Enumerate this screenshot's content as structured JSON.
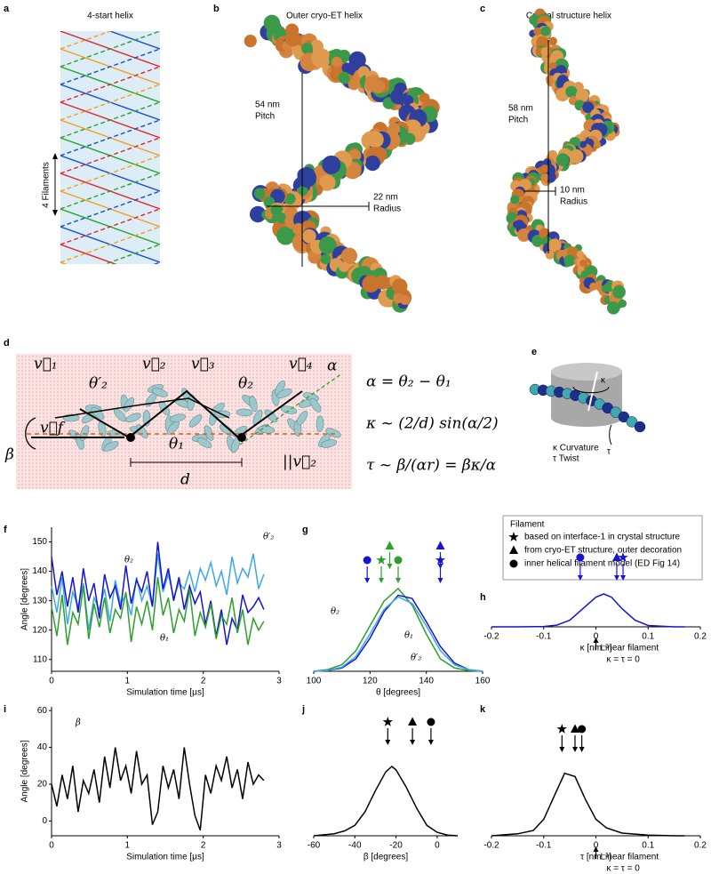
{
  "panels": {
    "a": {
      "letter": "a",
      "title": "4-start helix",
      "label": "4 Filaments"
    },
    "b": {
      "letter": "b",
      "title": "Outer cryo-ET helix",
      "pitch": "54 nm",
      "pitch_label": "Pitch",
      "radius": "22 nm",
      "radius_label": "Radius"
    },
    "c": {
      "letter": "c",
      "title": "Crystal structure helix",
      "pitch": "58 nm",
      "pitch_label": "Pitch",
      "radius": "10 nm",
      "radius_label": "Radius"
    },
    "d": {
      "letter": "d",
      "equations": [
        "α = θ₂ − θ₁",
        "κ ~ (2/d) sin(α/2)",
        "τ ~ β/(αr) = βκ/α"
      ],
      "labels": [
        "v⃗₁",
        "θ′₂",
        "v⃗₂",
        "v⃗₃",
        "θ₂",
        "v⃗₄",
        "α",
        "β",
        "v⃗f",
        "θ₁",
        "||v⃗₂",
        "d"
      ]
    },
    "e": {
      "letter": "e",
      "kappa": "κ",
      "tau": "τ",
      "curvature": "κ Curvature",
      "twist": "τ Twist"
    }
  },
  "legend": {
    "title": "Filament",
    "items": [
      {
        "shape": "star",
        "label": "based on interface-1 in crystal structure"
      },
      {
        "shape": "triangle",
        "label": "from cryo-ET structure, outer decoration"
      },
      {
        "shape": "circle",
        "label": "inner helical filament model (ED Fig 14)"
      }
    ]
  },
  "chart_data": [
    {
      "letter": "f",
      "type": "line",
      "x_label": "Simulation time [μs]",
      "y_label": "Angle [degrees]",
      "xlim": [
        0,
        3
      ],
      "xticks": [
        0,
        1,
        2,
        3
      ],
      "ylim": [
        106,
        155
      ],
      "yticks": [
        110,
        120,
        130,
        140,
        150
      ],
      "x": [
        0,
        0.07,
        0.14,
        0.21,
        0.28,
        0.35,
        0.42,
        0.49,
        0.56,
        0.63,
        0.7,
        0.77,
        0.84,
        0.91,
        0.98,
        1.05,
        1.12,
        1.19,
        1.26,
        1.33,
        1.4,
        1.47,
        1.54,
        1.61,
        1.68,
        1.75,
        1.82,
        1.89,
        1.96,
        2.03,
        2.1,
        2.17,
        2.24,
        2.31,
        2.38,
        2.45,
        2.52,
        2.59,
        2.66,
        2.73,
        2.8
      ],
      "series": [
        {
          "name": "θ′₂",
          "color": "#3aa8e8",
          "values": [
            135,
            126,
            138,
            122,
            133,
            128,
            136,
            120,
            131,
            127,
            134,
            123,
            137,
            129,
            132,
            125,
            138,
            130,
            135,
            128,
            146,
            133,
            139,
            131,
            136,
            134,
            140,
            133,
            141,
            137,
            143,
            135,
            140,
            132,
            145,
            136,
            141,
            138,
            146,
            134,
            139
          ]
        },
        {
          "name": "θ₂",
          "color": "#1414d2",
          "values": [
            145,
            132,
            140,
            128,
            138,
            126,
            141,
            130,
            136,
            124,
            139,
            131,
            135,
            127,
            142,
            129,
            137,
            133,
            140,
            128,
            150,
            134,
            141,
            130,
            138,
            127,
            135,
            129,
            133,
            122,
            130,
            118,
            127,
            115,
            124,
            120,
            132,
            126,
            128,
            131,
            127
          ]
        },
        {
          "name": "θ₁",
          "color": "#2ca02c",
          "values": [
            128,
            118,
            132,
            115,
            126,
            122,
            135,
            117,
            129,
            121,
            131,
            119,
            127,
            124,
            133,
            116,
            128,
            122,
            130,
            120,
            138,
            125,
            131,
            119,
            127,
            123,
            134,
            118,
            126,
            121,
            129,
            117,
            125,
            122,
            131,
            119,
            127,
            115,
            124,
            120,
            123
          ]
        }
      ]
    },
    {
      "letter": "g",
      "type": "line",
      "x_label": "θ [degrees]",
      "xlim": [
        100,
        160
      ],
      "xticks": [
        100,
        120,
        140,
        160
      ],
      "ylim": [
        0,
        1
      ],
      "x": [
        100,
        105,
        110,
        115,
        120,
        125,
        130,
        135,
        140,
        145,
        150,
        155,
        160
      ],
      "series": [
        {
          "name": "θ₁",
          "color": "#2ca02c",
          "values": [
            0,
            0.02,
            0.08,
            0.25,
            0.55,
            0.85,
            1.0,
            0.8,
            0.45,
            0.15,
            0.04,
            0.01,
            0
          ]
        },
        {
          "name": "θ₂",
          "color": "#1414d2",
          "values": [
            0,
            0.01,
            0.04,
            0.15,
            0.4,
            0.72,
            0.92,
            0.88,
            0.6,
            0.3,
            0.1,
            0.02,
            0
          ]
        },
        {
          "name": "θ′₂",
          "color": "#3aa8e8",
          "values": [
            0,
            0.01,
            0.05,
            0.18,
            0.45,
            0.75,
            0.9,
            0.82,
            0.55,
            0.25,
            0.08,
            0.02,
            0
          ]
        }
      ],
      "markers": [
        {
          "shape": "circle",
          "x": 119,
          "color": "#1414d2"
        },
        {
          "shape": "star",
          "x": 124,
          "color": "#2ca02c"
        },
        {
          "shape": "triangle",
          "x": 127,
          "color": "#2ca02c"
        },
        {
          "shape": "circle",
          "x": 130,
          "color": "#2ca02c"
        },
        {
          "shape": "triangle",
          "x": 145,
          "color": "#1414d2"
        },
        {
          "shape": "star",
          "x": 145,
          "color": "#1414d2"
        }
      ]
    },
    {
      "letter": "h",
      "type": "line",
      "x_label": "κ  [nm⁻¹]",
      "xlim": [
        -0.2,
        0.2
      ],
      "xticks": [
        -0.2,
        -0.1,
        0,
        0.1,
        0.2
      ],
      "ylim": [
        0,
        1
      ],
      "x": [
        -0.2,
        -0.15,
        -0.1,
        -0.075,
        -0.05,
        -0.025,
        0,
        0.015,
        0.03,
        0.05,
        0.075,
        0.1,
        0.15,
        0.17
      ],
      "series": [
        {
          "name": "κ",
          "color": "#1414d2",
          "values": [
            0,
            0,
            0.01,
            0.05,
            0.2,
            0.55,
            0.9,
            1.0,
            0.9,
            0.55,
            0.2,
            0.04,
            0,
            0
          ]
        }
      ],
      "markers": [
        {
          "shape": "circle",
          "x": -0.03,
          "color": "#1414d2"
        },
        {
          "shape": "triangle",
          "x": 0.04,
          "color": "#1414d2"
        },
        {
          "shape": "star",
          "x": 0.052,
          "color": "#1414d2"
        }
      ],
      "linear": {
        "x": 0,
        "label": "Linear filament",
        "note": "κ = τ = 0"
      }
    },
    {
      "letter": "i",
      "type": "line",
      "x_label": "Simulation time [μs]",
      "y_label": "Angle [degrees]",
      "xlim": [
        0,
        3
      ],
      "xticks": [
        0,
        1,
        2,
        3
      ],
      "ylim": [
        -8,
        62
      ],
      "yticks": [
        0,
        20,
        40,
        60
      ],
      "x": [
        0,
        0.07,
        0.14,
        0.21,
        0.28,
        0.35,
        0.42,
        0.49,
        0.56,
        0.63,
        0.7,
        0.77,
        0.84,
        0.91,
        0.98,
        1.05,
        1.12,
        1.19,
        1.26,
        1.33,
        1.4,
        1.47,
        1.54,
        1.61,
        1.68,
        1.75,
        1.82,
        1.89,
        1.96,
        2.03,
        2.1,
        2.17,
        2.24,
        2.31,
        2.38,
        2.45,
        2.52,
        2.59,
        2.66,
        2.73,
        2.8
      ],
      "series": [
        {
          "name": "β",
          "color": "#000000",
          "values": [
            20,
            8,
            25,
            12,
            30,
            5,
            22,
            15,
            28,
            10,
            35,
            18,
            40,
            22,
            30,
            15,
            38,
            20,
            25,
            -2,
            5,
            30,
            18,
            28,
            12,
            40,
            20,
            3,
            -5,
            25,
            15,
            30,
            22,
            35,
            18,
            28,
            12,
            32,
            20,
            25,
            22
          ]
        }
      ]
    },
    {
      "letter": "j",
      "type": "line",
      "x_label": "β [degrees]",
      "xlim": [
        -60,
        10
      ],
      "xticks": [
        -60,
        -40,
        -20,
        0
      ],
      "ylim": [
        0,
        1
      ],
      "x": [
        -60,
        -50,
        -45,
        -40,
        -35,
        -30,
        -25,
        -22,
        -20,
        -15,
        -10,
        -5,
        0,
        5,
        10
      ],
      "series": [
        {
          "name": "β",
          "color": "#000000",
          "values": [
            0,
            0.03,
            0.07,
            0.15,
            0.35,
            0.65,
            0.92,
            1.0,
            0.95,
            0.7,
            0.4,
            0.15,
            0.05,
            0.01,
            0
          ]
        }
      ],
      "markers": [
        {
          "shape": "star",
          "x": -24,
          "color": "#000000"
        },
        {
          "shape": "triangle",
          "x": -12,
          "color": "#000000"
        },
        {
          "shape": "circle",
          "x": -3,
          "color": "#000000"
        }
      ]
    },
    {
      "letter": "k",
      "type": "line",
      "x_label": "τ  [nm⁻¹]",
      "xlim": [
        -0.2,
        0.2
      ],
      "xticks": [
        -0.2,
        -0.1,
        0,
        0.1,
        0.2
      ],
      "ylim": [
        0,
        1
      ],
      "x": [
        -0.2,
        -0.15,
        -0.12,
        -0.1,
        -0.08,
        -0.06,
        -0.04,
        -0.02,
        0,
        0.02,
        0.05,
        0.1,
        0.15,
        0.17
      ],
      "series": [
        {
          "name": "τ",
          "color": "#000000",
          "values": [
            0,
            0.03,
            0.08,
            0.25,
            0.6,
            0.95,
            0.9,
            0.55,
            0.25,
            0.12,
            0.04,
            0.01,
            0,
            0
          ]
        }
      ],
      "markers": [
        {
          "shape": "star",
          "x": -0.065,
          "color": "#000000"
        },
        {
          "shape": "triangle",
          "x": -0.04,
          "color": "#000000"
        },
        {
          "shape": "circle",
          "x": -0.027,
          "color": "#000000"
        }
      ],
      "linear": {
        "x": 0,
        "label": "Linear filament",
        "note": "κ = τ = 0"
      }
    }
  ]
}
